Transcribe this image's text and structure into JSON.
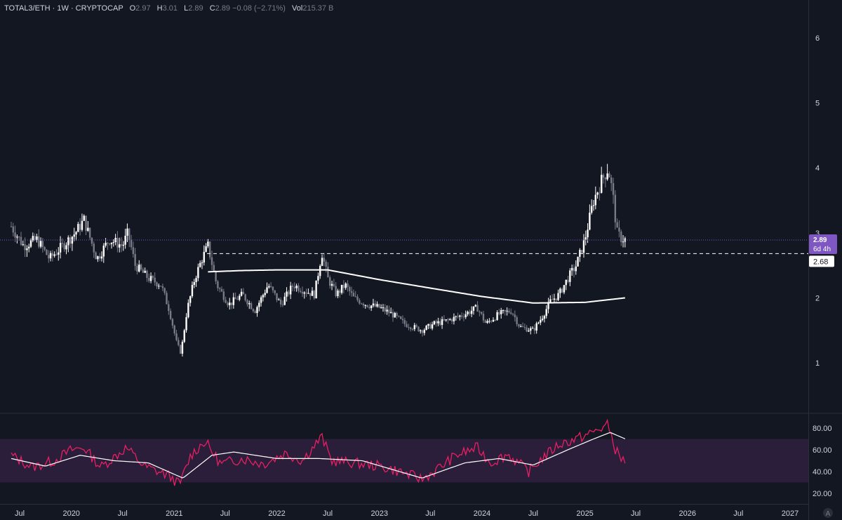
{
  "header": {
    "symbol": "TOTAL3/ETH · 1W · CRYPTOCAP",
    "o_label": "O",
    "o": "2.97",
    "h_label": "H",
    "h": "3.01",
    "l_label": "L",
    "l": "2.89",
    "c_label": "C",
    "c": "2.89",
    "change": "−0.08 (−2.71%)",
    "vol_label": "Vol",
    "vol": "215.37 B"
  },
  "colors": {
    "background": "#131722",
    "candle_up": "#ffffff",
    "candle_down": "#787b86",
    "ma": "#ffffff",
    "rsi": "#e91e63",
    "rsi_ma": "#ffffff",
    "rsi_band": "#2a1e3b",
    "price_badge": "#7e57c2",
    "grid_text": "#d1d4dc"
  },
  "chart_data": [
    {
      "type": "candlestick",
      "price_axis": {
        "ticks": [
          "1",
          "2",
          "3",
          "4",
          "5",
          "6"
        ],
        "ylim": [
          0.3,
          6.6
        ]
      },
      "time_axis": {
        "ticks": [
          "Jul",
          "2020",
          "Jul",
          "2021",
          "Jul",
          "2022",
          "Jul",
          "2023",
          "Jul",
          "2024",
          "Jul",
          "2025",
          "Jul",
          "2026",
          "Jul",
          "2027"
        ]
      },
      "anchors": [
        [
          "2019-06-01",
          3.1
        ],
        [
          "2019-07-15",
          2.8
        ],
        [
          "2019-09-01",
          2.9
        ],
        [
          "2019-10-15",
          2.6
        ],
        [
          "2019-12-01",
          2.8
        ],
        [
          "2020-01-15",
          3.0
        ],
        [
          "2020-02-15",
          3.2
        ],
        [
          "2020-04-01",
          2.6
        ],
        [
          "2020-05-15",
          2.9
        ],
        [
          "2020-07-01",
          2.8
        ],
        [
          "2020-07-20",
          3.0
        ],
        [
          "2020-08-15",
          2.5
        ],
        [
          "2020-10-01",
          2.3
        ],
        [
          "2020-11-15",
          2.2
        ],
        [
          "2020-12-15",
          1.8
        ],
        [
          "2021-01-10",
          1.3
        ],
        [
          "2021-01-25",
          1.15
        ],
        [
          "2021-02-15",
          1.8
        ],
        [
          "2021-03-15",
          2.3
        ],
        [
          "2021-04-10",
          2.6
        ],
        [
          "2021-05-01",
          2.8
        ],
        [
          "2021-06-01",
          2.2
        ],
        [
          "2021-07-15",
          1.9
        ],
        [
          "2021-09-01",
          2.05
        ],
        [
          "2021-10-15",
          1.8
        ],
        [
          "2021-12-01",
          2.2
        ],
        [
          "2022-01-15",
          1.9
        ],
        [
          "2022-03-01",
          2.2
        ],
        [
          "2022-04-15",
          2.1
        ],
        [
          "2022-05-15",
          2.05
        ],
        [
          "2022-06-10",
          2.7
        ],
        [
          "2022-07-01",
          2.3
        ],
        [
          "2022-08-01",
          2.05
        ],
        [
          "2022-09-01",
          2.2
        ],
        [
          "2022-10-01",
          2.0
        ],
        [
          "2022-11-15",
          1.9
        ],
        [
          "2023-01-01",
          1.85
        ],
        [
          "2023-02-15",
          1.75
        ],
        [
          "2023-04-01",
          1.6
        ],
        [
          "2023-06-01",
          1.5
        ],
        [
          "2023-07-15",
          1.6
        ],
        [
          "2023-09-01",
          1.65
        ],
        [
          "2023-11-01",
          1.75
        ],
        [
          "2023-12-15",
          1.85
        ],
        [
          "2024-01-15",
          1.6
        ],
        [
          "2024-03-01",
          1.75
        ],
        [
          "2024-04-15",
          1.8
        ],
        [
          "2024-05-15",
          1.55
        ],
        [
          "2024-07-01",
          1.5
        ],
        [
          "2024-08-01",
          1.7
        ],
        [
          "2024-09-01",
          1.95
        ],
        [
          "2024-10-01",
          2.05
        ],
        [
          "2024-11-01",
          2.3
        ],
        [
          "2024-12-01",
          2.5
        ],
        [
          "2025-01-01",
          2.9
        ],
        [
          "2025-02-01",
          3.5
        ],
        [
          "2025-03-01",
          3.8
        ],
        [
          "2025-03-25",
          4.0
        ],
        [
          "2025-04-10",
          3.6
        ],
        [
          "2025-04-25",
          3.0
        ],
        [
          "2025-05-10",
          2.92
        ],
        [
          "2025-05-25",
          2.89
        ]
      ],
      "moving_average": [
        [
          "2021-05-01",
          2.4
        ],
        [
          "2021-09-01",
          2.42
        ],
        [
          "2022-01-01",
          2.43
        ],
        [
          "2022-07-01",
          2.43
        ],
        [
          "2023-01-01",
          2.28
        ],
        [
          "2023-07-01",
          2.15
        ],
        [
          "2024-01-01",
          2.02
        ],
        [
          "2024-07-01",
          1.92
        ],
        [
          "2025-01-01",
          1.93
        ],
        [
          "2025-05-25",
          2.0
        ]
      ],
      "horizontal_level": 2.68,
      "last_price": {
        "value": "2.89",
        "countdown": "6d 4h"
      },
      "level_label": "2.68"
    },
    {
      "type": "line",
      "name": "RSI",
      "y_ticks": [
        "20.00",
        "40.00",
        "60.00",
        "80.00"
      ],
      "ylim": [
        15,
        86
      ],
      "band": [
        30,
        70
      ],
      "rsi_anchors": [
        [
          "2019-06-01",
          55
        ],
        [
          "2019-08-15",
          44
        ],
        [
          "2019-11-01",
          50
        ],
        [
          "2020-01-01",
          60
        ],
        [
          "2020-02-15",
          62
        ],
        [
          "2020-04-15",
          44
        ],
        [
          "2020-07-15",
          62
        ],
        [
          "2020-09-15",
          45
        ],
        [
          "2020-12-15",
          36
        ],
        [
          "2021-01-20",
          28
        ],
        [
          "2021-03-01",
          55
        ],
        [
          "2021-04-20",
          68
        ],
        [
          "2021-06-15",
          47
        ],
        [
          "2021-09-01",
          52
        ],
        [
          "2021-11-15",
          47
        ],
        [
          "2022-02-01",
          57
        ],
        [
          "2022-04-01",
          50
        ],
        [
          "2022-06-10",
          72
        ],
        [
          "2022-07-15",
          50
        ],
        [
          "2022-10-01",
          48
        ],
        [
          "2023-01-01",
          45
        ],
        [
          "2023-03-15",
          40
        ],
        [
          "2023-06-01",
          33
        ],
        [
          "2023-07-15",
          40
        ],
        [
          "2023-10-01",
          55
        ],
        [
          "2023-12-15",
          62
        ],
        [
          "2024-02-01",
          48
        ],
        [
          "2024-04-01",
          56
        ],
        [
          "2024-06-15",
          40
        ],
        [
          "2024-08-01",
          52
        ],
        [
          "2024-10-01",
          65
        ],
        [
          "2024-12-01",
          70
        ],
        [
          "2025-01-20",
          75
        ],
        [
          "2025-03-01",
          80
        ],
        [
          "2025-03-25",
          83
        ],
        [
          "2025-04-20",
          60
        ],
        [
          "2025-05-10",
          52
        ],
        [
          "2025-05-25",
          49
        ]
      ],
      "rsi_ma_anchors": [
        [
          "2019-06-01",
          52
        ],
        [
          "2019-10-01",
          45
        ],
        [
          "2020-02-01",
          55
        ],
        [
          "2020-06-01",
          50
        ],
        [
          "2020-10-01",
          48
        ],
        [
          "2021-02-01",
          34
        ],
        [
          "2021-05-15",
          55
        ],
        [
          "2021-08-01",
          58
        ],
        [
          "2022-01-01",
          52
        ],
        [
          "2022-06-01",
          52
        ],
        [
          "2022-11-01",
          50
        ],
        [
          "2023-06-01",
          34
        ],
        [
          "2023-11-01",
          48
        ],
        [
          "2024-03-01",
          52
        ],
        [
          "2024-07-01",
          46
        ],
        [
          "2024-11-01",
          60
        ],
        [
          "2025-02-01",
          70
        ],
        [
          "2025-04-01",
          76
        ],
        [
          "2025-05-25",
          70
        ]
      ]
    }
  ]
}
